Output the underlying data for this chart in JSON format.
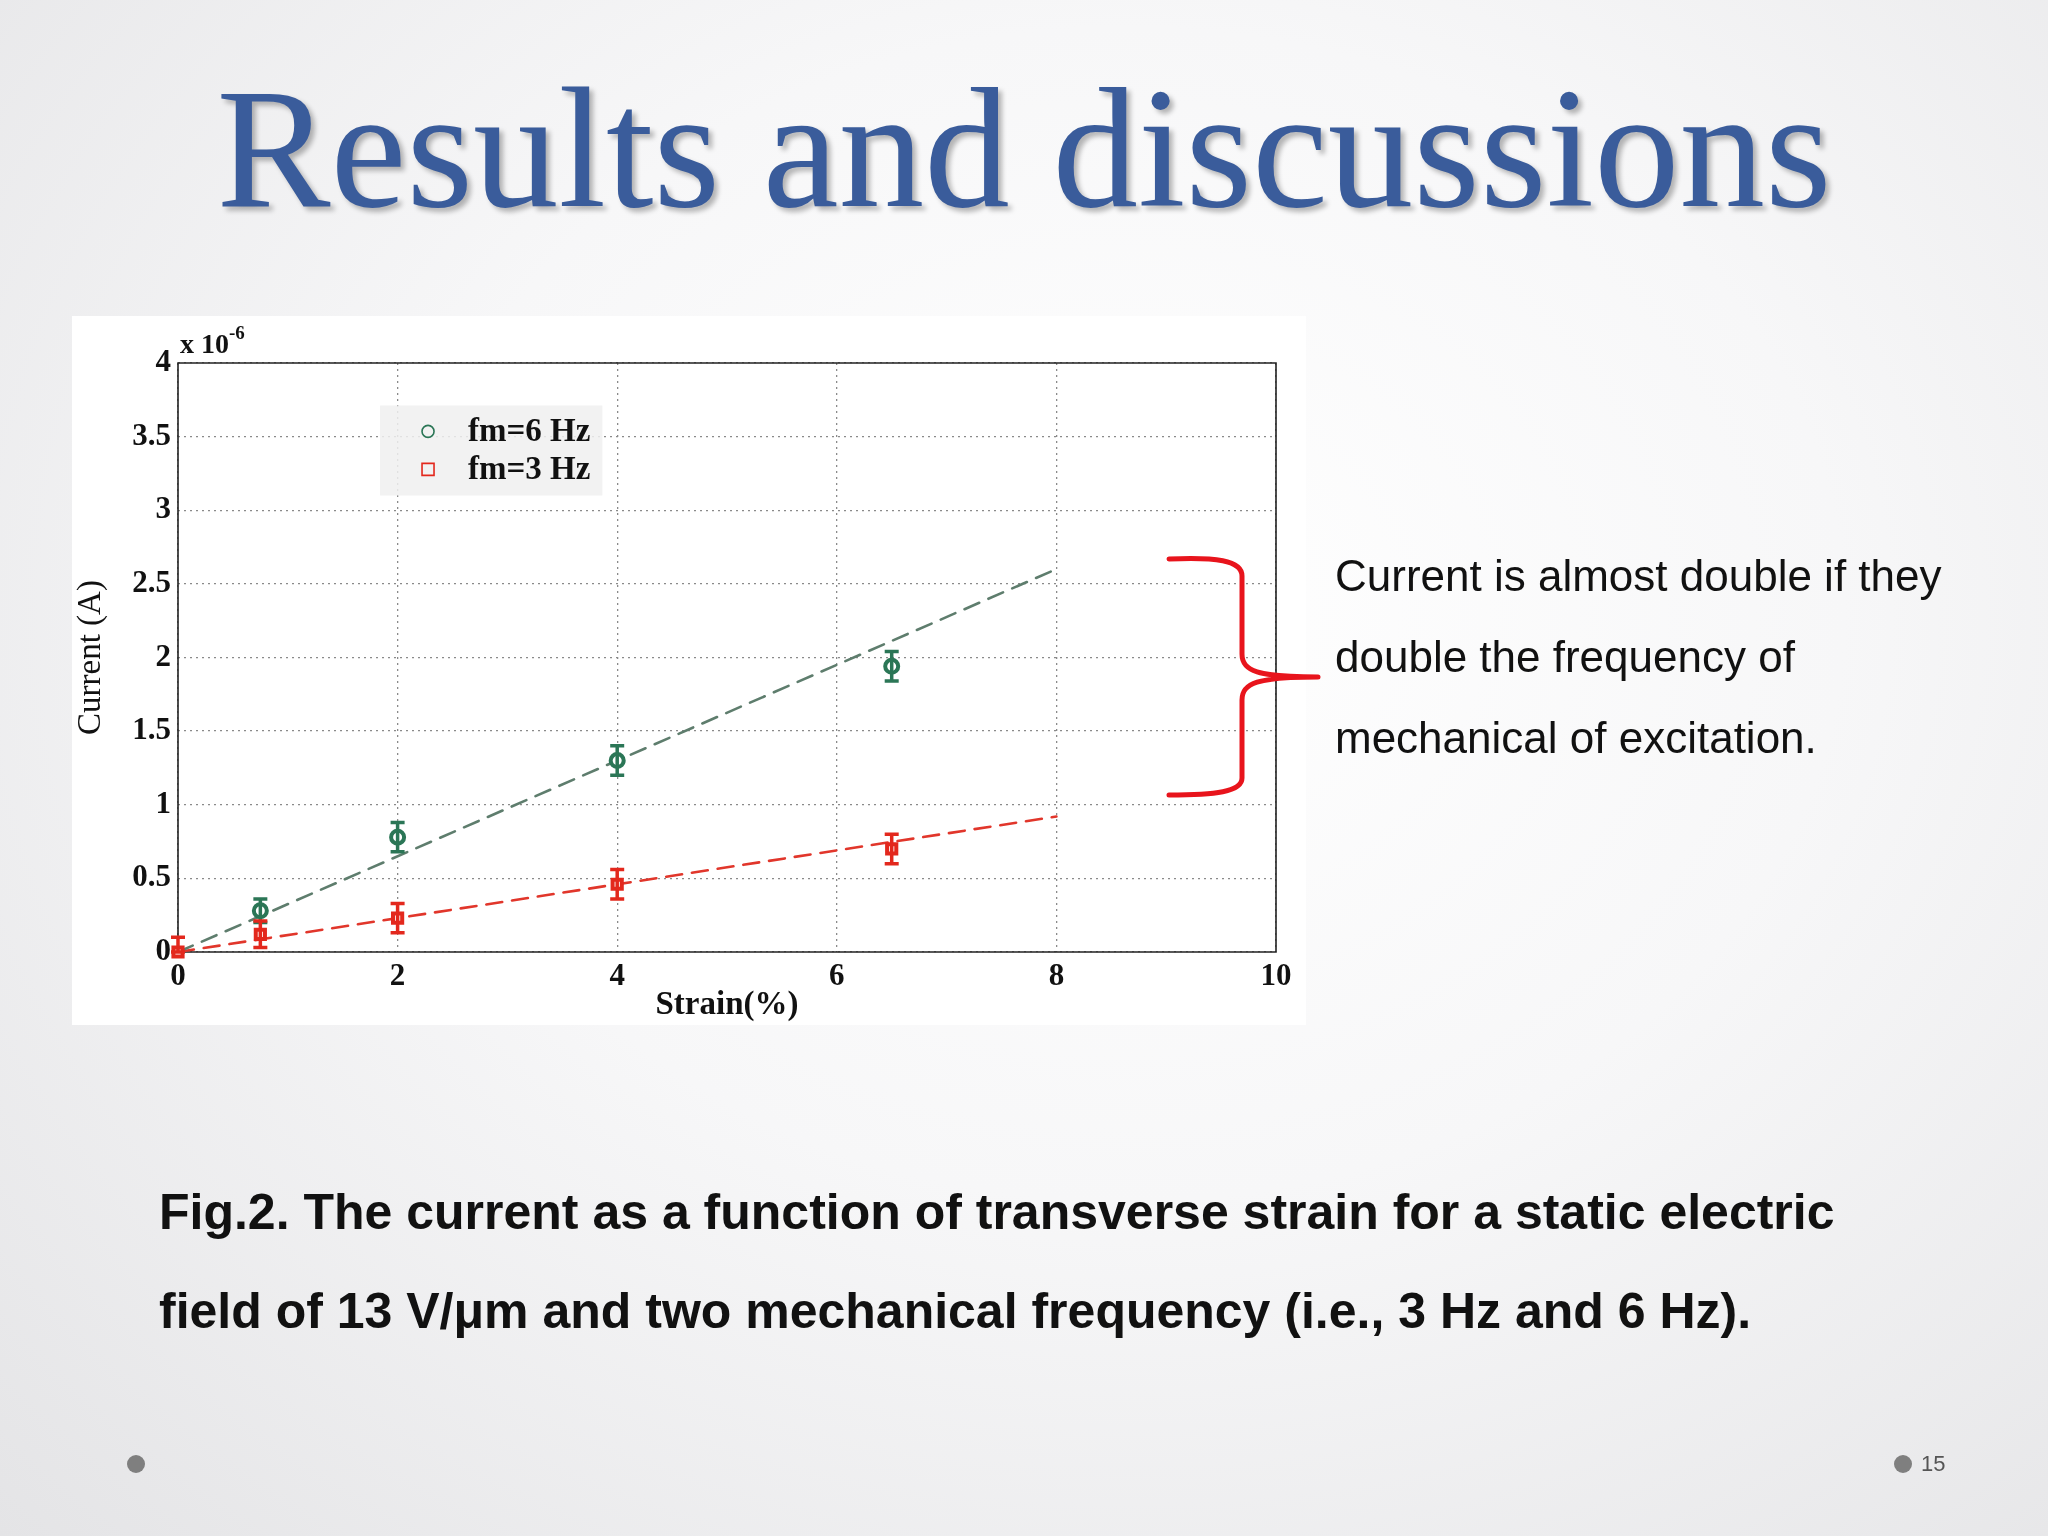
{
  "chart_data": {
    "type": "scatter",
    "title": "Results and discussions",
    "xlabel": "Strain(%)",
    "ylabel": "Current (A)",
    "xlim": [
      0,
      10
    ],
    "xticks": [
      0,
      2,
      4,
      6,
      8,
      10
    ],
    "ylim": [
      0,
      4
    ],
    "yticks": [
      0,
      0.5,
      1,
      1.5,
      2,
      2.5,
      3,
      3.5,
      4
    ],
    "grid": true,
    "legend": "top left",
    "series": [
      {
        "name": "fm=6 Hz",
        "marker": "circle",
        "color": "#2b7656",
        "x": [
          0.75,
          2,
          4,
          6.5
        ],
        "values": [
          0.28,
          0.78,
          1.3,
          1.94
        ],
        "errors": [
          0.08,
          0.1,
          0.1,
          0.1
        ]
      },
      {
        "name": "fm=3 Hz",
        "marker": "square",
        "color": "#e3281d",
        "x": [
          0,
          0.75,
          2,
          4,
          6.5
        ],
        "values": [
          0,
          0.12,
          0.23,
          0.46,
          0.7
        ],
        "errors": [
          [
            0,
            0.1
          ],
          0.09,
          0.1,
          0.1,
          0.1
        ]
      },
      {
        "type": "line",
        "line_style": "dashed",
        "marker": "none",
        "color": "#5e7d6d",
        "x": [
          0,
          8
        ],
        "values": [
          0,
          2.6
        ]
      },
      {
        "type": "line",
        "line_style": "dashed",
        "marker": "none",
        "color": "#e1362b",
        "x": [
          0,
          8
        ],
        "values": [
          0,
          0.92
        ]
      }
    ],
    "annotations": [
      "x 10$^{-6}$",
      "Current is almost double if they double the frequency of mechanical of excitation.",
      "Fig.2. The current as a function of transverse strain for a static electric field of 13 V/μm and two mechanical frequency (i.e., 3 Hz and 6 Hz).",
      "15"
    ]
  }
}
